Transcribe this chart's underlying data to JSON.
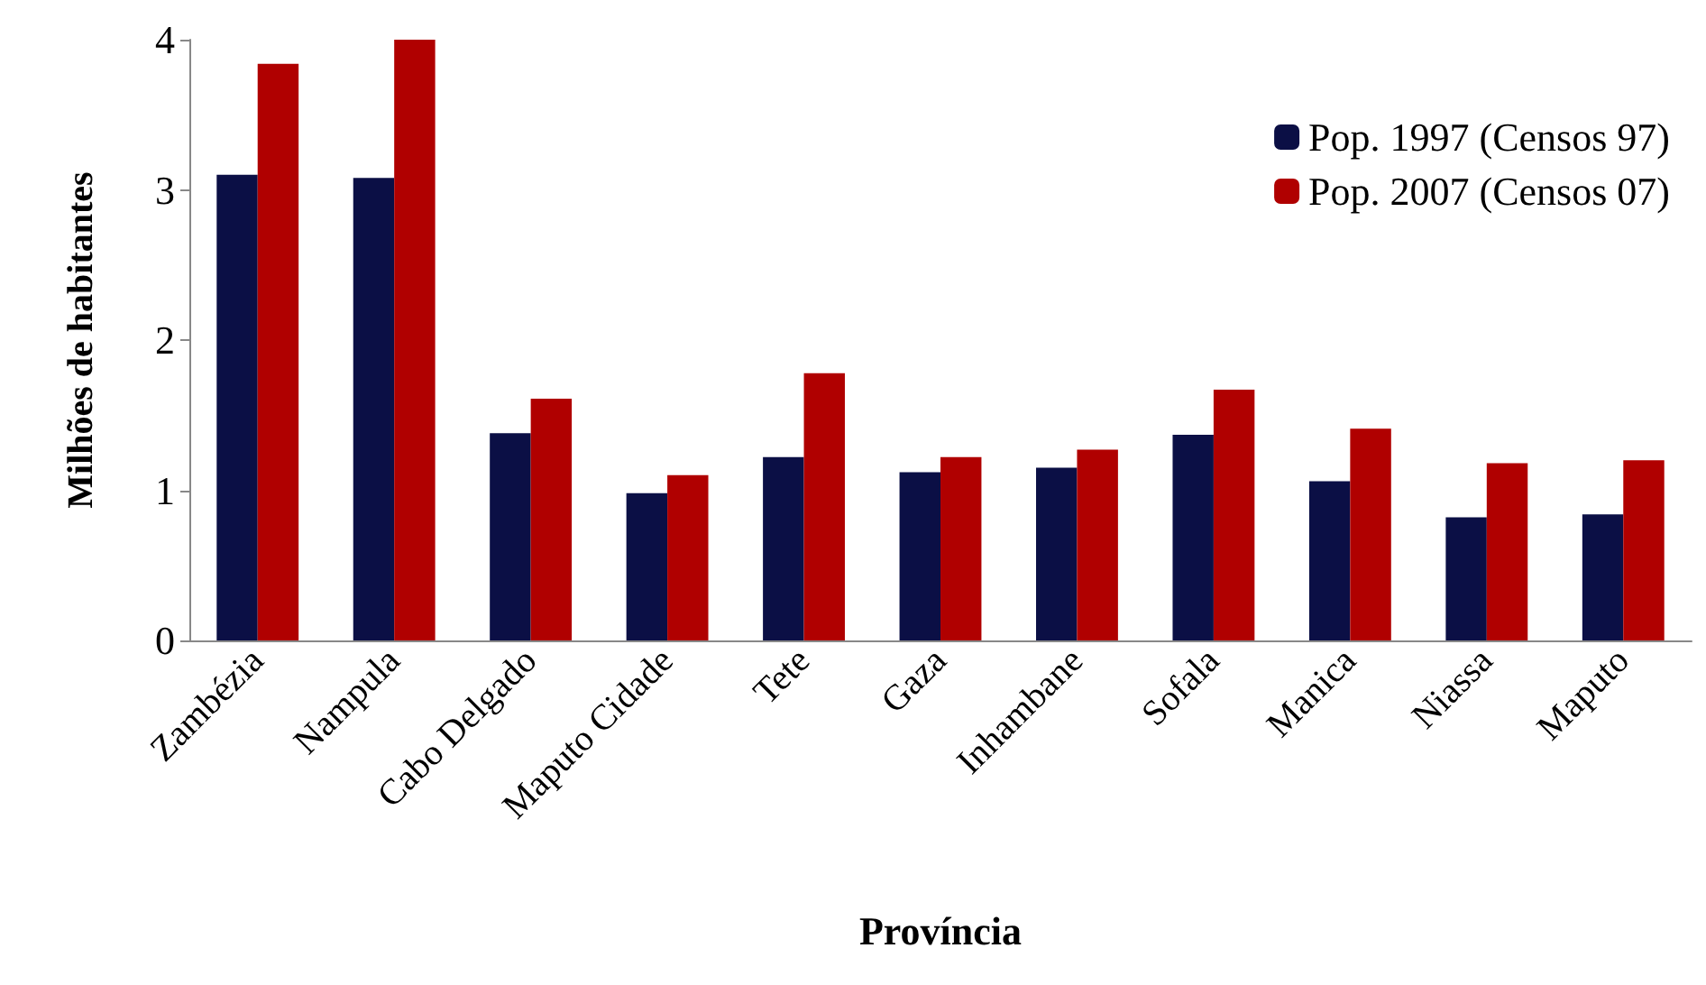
{
  "chart_data": {
    "type": "bar",
    "xlabel": "Província",
    "ylabel": "Milhões de habitantes",
    "categories": [
      "Zambézia",
      "Nampula",
      "Cabo Delgado",
      "Maputo Cidade",
      "Tete",
      "Gaza",
      "Inhambane",
      "Sofala",
      "Manica",
      "Niassa",
      "Maputo"
    ],
    "series": [
      {
        "name": "Pop. 1997 (Censos 97)",
        "color": "#0b0f45",
        "values": [
          3.1,
          3.08,
          1.38,
          0.98,
          1.22,
          1.12,
          1.15,
          1.37,
          1.06,
          0.82,
          0.84
        ]
      },
      {
        "name": "Pop. 2007 (Censos 07)",
        "color": "#b00000",
        "values": [
          3.84,
          4.0,
          1.61,
          1.1,
          1.78,
          1.22,
          1.27,
          1.67,
          1.41,
          1.18,
          1.2
        ]
      }
    ],
    "ylim": [
      0,
      4
    ],
    "yticks": [
      0,
      1,
      2,
      3,
      4
    ],
    "grid": false,
    "legend": "top right"
  }
}
